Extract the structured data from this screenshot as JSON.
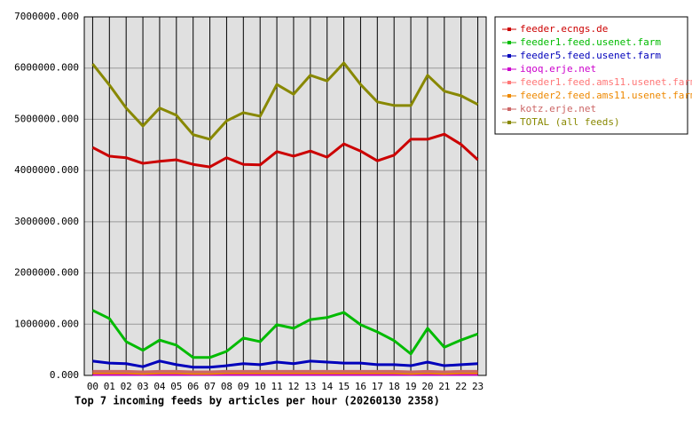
{
  "chart_data": {
    "type": "line",
    "title": "Top 7 incoming feeds by articles per hour (20260130 2358)",
    "categories": [
      "00",
      "01",
      "02",
      "03",
      "04",
      "05",
      "06",
      "07",
      "08",
      "09",
      "10",
      "11",
      "12",
      "13",
      "14",
      "15",
      "16",
      "17",
      "18",
      "19",
      "20",
      "21",
      "22",
      "23"
    ],
    "ylim": [
      0,
      7000000
    ],
    "yticks": [
      {
        "value": 0,
        "label": "0.000"
      },
      {
        "value": 1000000,
        "label": "1000000.000"
      },
      {
        "value": 2000000,
        "label": "2000000.000"
      },
      {
        "value": 3000000,
        "label": "3000000.000"
      },
      {
        "value": 4000000,
        "label": "4000000.000"
      },
      {
        "value": 5000000,
        "label": "5000000.000"
      },
      {
        "value": 6000000,
        "label": "6000000.000"
      },
      {
        "value": 7000000,
        "label": "7000000.000"
      }
    ],
    "grid": true,
    "legend": "right",
    "series": [
      {
        "name": "feeder.ecngs.de",
        "color": "#cc0000",
        "values": [
          4450000,
          4280000,
          4250000,
          4140000,
          4180000,
          4210000,
          4120000,
          4070000,
          4250000,
          4120000,
          4110000,
          4370000,
          4280000,
          4380000,
          4260000,
          4520000,
          4380000,
          4190000,
          4300000,
          4610000,
          4610000,
          4710000,
          4510000,
          4210000
        ]
      },
      {
        "name": "feeder1.feed.usenet.farm",
        "color": "#00bb00",
        "values": [
          1270000,
          1110000,
          660000,
          490000,
          690000,
          590000,
          350000,
          350000,
          470000,
          730000,
          660000,
          990000,
          920000,
          1090000,
          1130000,
          1230000,
          990000,
          850000,
          680000,
          420000,
          920000,
          550000,
          690000,
          810000
        ]
      },
      {
        "name": "feeder5.feed.usenet.farm",
        "color": "#0000bb",
        "values": [
          280000,
          240000,
          230000,
          170000,
          280000,
          210000,
          160000,
          160000,
          190000,
          230000,
          210000,
          260000,
          230000,
          280000,
          260000,
          240000,
          240000,
          210000,
          210000,
          190000,
          260000,
          190000,
          210000,
          230000
        ]
      },
      {
        "name": "iqoq.erje.net",
        "color": "#cc00cc",
        "values": [
          20000,
          20000,
          20000,
          20000,
          20000,
          20000,
          20000,
          20000,
          20000,
          20000,
          20000,
          20000,
          20000,
          20000,
          20000,
          20000,
          20000,
          20000,
          20000,
          20000,
          20000,
          20000,
          20000,
          20000
        ]
      },
      {
        "name": "feeder1.feed.ams11.usenet.farm",
        "color": "#ff7777",
        "values": [
          60000,
          60000,
          60000,
          50000,
          60000,
          60000,
          50000,
          50000,
          60000,
          60000,
          60000,
          60000,
          60000,
          60000,
          60000,
          60000,
          60000,
          60000,
          60000,
          50000,
          60000,
          50000,
          60000,
          60000
        ]
      },
      {
        "name": "feeder2.feed.ams11.usenet.farm",
        "color": "#ee8800",
        "values": [
          50000,
          50000,
          50000,
          40000,
          50000,
          50000,
          40000,
          40000,
          50000,
          50000,
          50000,
          50000,
          50000,
          50000,
          50000,
          50000,
          50000,
          50000,
          50000,
          40000,
          50000,
          40000,
          50000,
          50000
        ]
      },
      {
        "name": "kotz.erje.net",
        "color": "#cc6666",
        "values": [
          80000,
          80000,
          80000,
          70000,
          80000,
          80000,
          70000,
          70000,
          80000,
          80000,
          80000,
          80000,
          80000,
          80000,
          80000,
          80000,
          80000,
          80000,
          80000,
          70000,
          80000,
          70000,
          80000,
          80000
        ]
      },
      {
        "name": "TOTAL (all feeds)",
        "color": "#888800",
        "values": [
          6080000,
          5670000,
          5220000,
          4870000,
          5220000,
          5080000,
          4700000,
          4610000,
          4970000,
          5130000,
          5060000,
          5680000,
          5490000,
          5860000,
          5750000,
          6100000,
          5680000,
          5340000,
          5270000,
          5270000,
          5860000,
          5550000,
          5460000,
          5290000
        ]
      }
    ]
  }
}
